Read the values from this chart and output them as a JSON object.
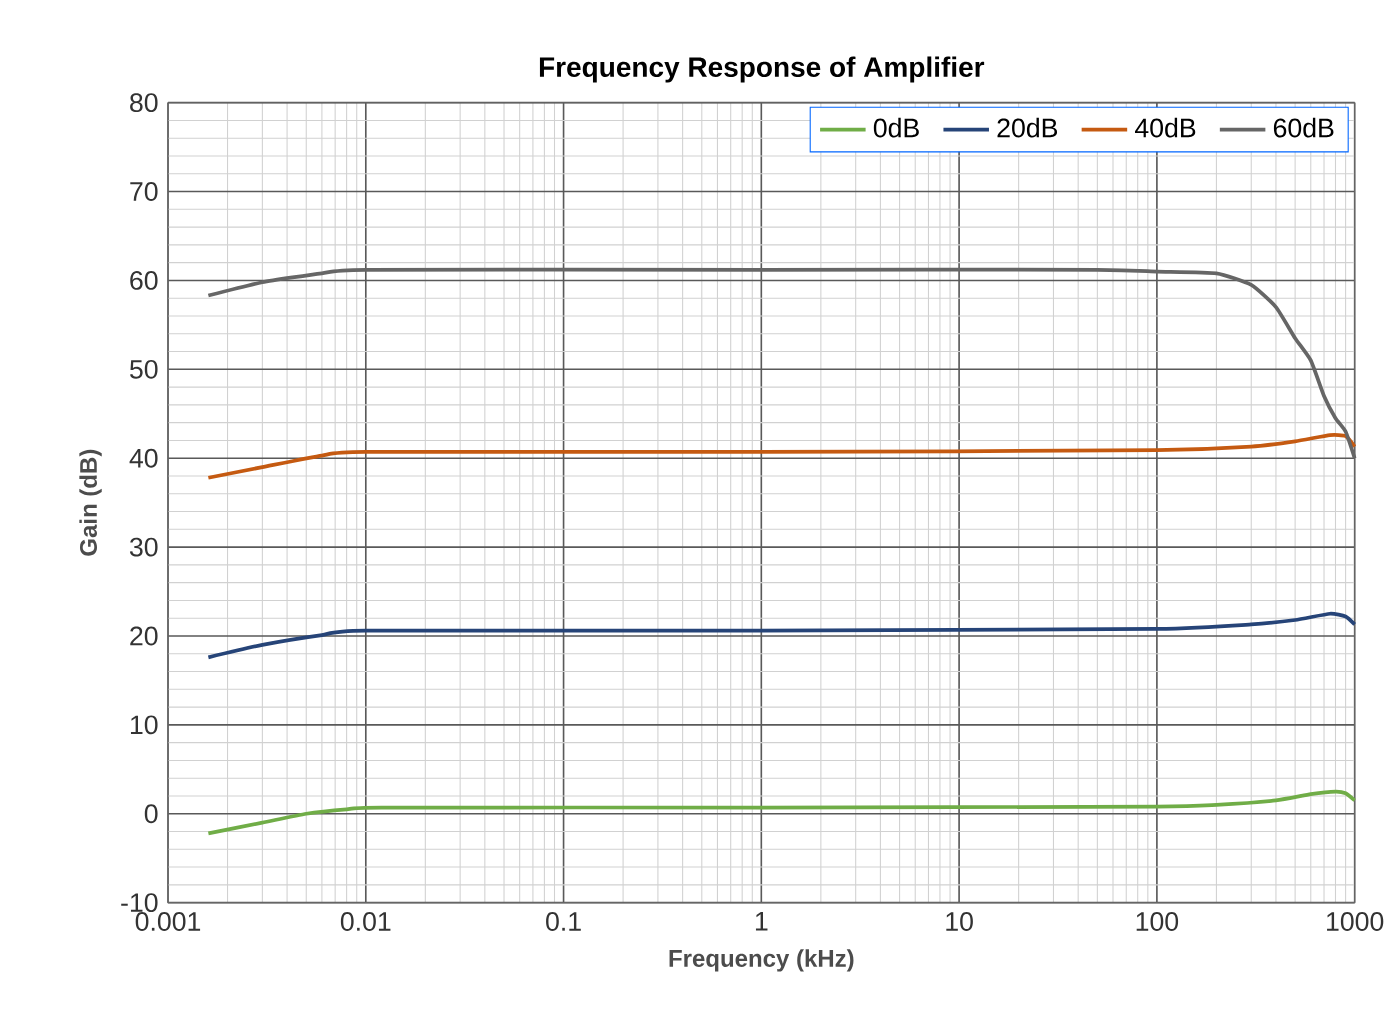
{
  "chart_data": {
    "type": "line",
    "title": "Frequency Response of Amplifier",
    "xlabel": "Frequency (kHz)",
    "ylabel": "Gain (dB)",
    "log": "x",
    "grid": true,
    "legend": "top right",
    "marker": "none",
    "line_style": "solid",
    "xlim": [
      0.001,
      1000
    ],
    "ylim": [
      -10,
      80
    ],
    "xticks": [
      0.001,
      0.01,
      0.1,
      1,
      10,
      100,
      1000
    ],
    "yticks": [
      -10,
      0,
      10,
      20,
      30,
      40,
      50,
      60,
      70,
      80
    ],
    "series": [
      {
        "name": "0dB",
        "color": "#70ad47",
        "x": [
          0.0016,
          0.003,
          0.005,
          0.008,
          0.012,
          1,
          100,
          200,
          400,
          600,
          800,
          900,
          1000
        ],
        "values": [
          -2.2,
          -1.0,
          0,
          0.5,
          0.7,
          0.7,
          0.8,
          1.0,
          1.5,
          2.2,
          2.5,
          2.3,
          1.5
        ]
      },
      {
        "name": "20dB",
        "color": "#264478",
        "x": [
          0.0016,
          0.003,
          0.006,
          0.01,
          1,
          100,
          300,
          500,
          750,
          900,
          1000
        ],
        "values": [
          17.6,
          19.0,
          20.1,
          20.6,
          20.6,
          20.8,
          21.3,
          21.8,
          22.5,
          22.2,
          21.3
        ]
      },
      {
        "name": "40dB",
        "color": "#c55a11",
        "x": [
          0.0016,
          0.003,
          0.006,
          0.01,
          1,
          100,
          300,
          500,
          750,
          900,
          1000
        ],
        "values": [
          37.8,
          39.0,
          40.3,
          40.7,
          40.7,
          40.9,
          41.3,
          41.9,
          42.6,
          42.5,
          41.3
        ]
      },
      {
        "name": "60dB",
        "color": "#666666",
        "x": [
          0.0016,
          0.003,
          0.006,
          0.01,
          1,
          50,
          100,
          200,
          300,
          400,
          500,
          600,
          700,
          800,
          900,
          1000
        ],
        "values": [
          58.3,
          59.8,
          60.8,
          61.2,
          61.2,
          61.2,
          61.0,
          60.8,
          59.5,
          57,
          53.5,
          51,
          47,
          44.5,
          43,
          40
        ]
      }
    ]
  }
}
